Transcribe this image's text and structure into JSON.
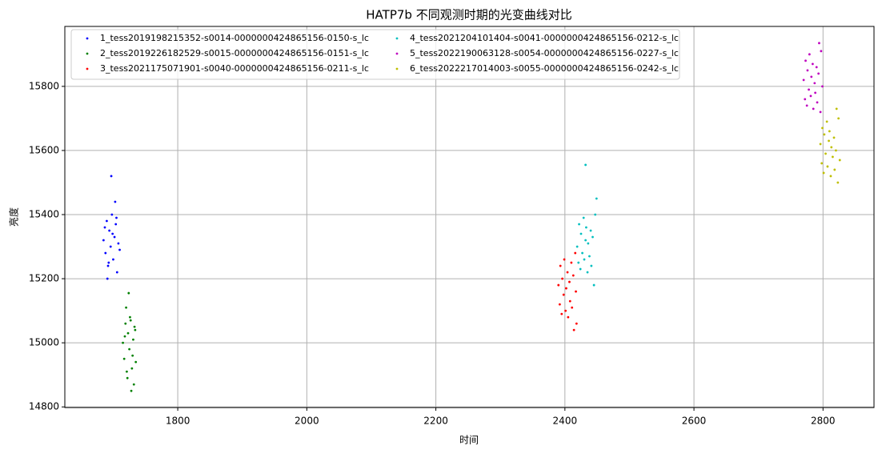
{
  "chart_data": {
    "type": "scatter",
    "title": "HATP7b 不同观测时期的光变曲线对比",
    "x_label": "时间",
    "y_label": "亮度",
    "xlim": [
      1625,
      2879
    ],
    "ylim": [
      14798,
      15987
    ],
    "xticks": [
      1800,
      2000,
      2200,
      2400,
      2600,
      2800
    ],
    "yticks": [
      14800,
      15000,
      15200,
      15400,
      15600,
      15800
    ],
    "grid": true,
    "legend": "upper left",
    "series": [
      {
        "name": "1_tess2019198215352-s0014-0000000424865156-0150-s_lc",
        "color": "#0000ff",
        "x": [
          1685,
          1688,
          1690,
          1692,
          1694,
          1696,
          1698,
          1700,
          1702,
          1704,
          1706,
          1708,
          1710,
          1687,
          1693,
          1699,
          1705,
          1697,
          1691,
          1703
        ],
        "y": [
          15320,
          15280,
          15380,
          15240,
          15350,
          15300,
          15400,
          15260,
          15330,
          15370,
          15220,
          15310,
          15290,
          15360,
          15250,
          15340,
          15390,
          15520,
          15200,
          15440
        ]
      },
      {
        "name": "2_tess2019226182529-s0015-0000000424865156-0151-s_lc",
        "color": "#008000",
        "x": [
          1715,
          1717,
          1719,
          1721,
          1723,
          1725,
          1727,
          1729,
          1731,
          1733,
          1735,
          1718,
          1722,
          1726,
          1730,
          1734,
          1720,
          1728,
          1724,
          1732
        ],
        "y": [
          15000,
          14950,
          15060,
          14910,
          15030,
          14980,
          15070,
          14920,
          15010,
          15050,
          14940,
          15020,
          14890,
          15080,
          14960,
          15040,
          15110,
          14850,
          15155,
          14870
        ]
      },
      {
        "name": "3_tess2021175071901-s0040-0000000424865156-0211-s_lc",
        "color": "#ff0000",
        "x": [
          2390,
          2392,
          2393,
          2395,
          2396,
          2398,
          2399,
          2401,
          2402,
          2404,
          2405,
          2407,
          2408,
          2410,
          2411,
          2413,
          2414,
          2416,
          2417,
          2418
        ],
        "y": [
          15180,
          15120,
          15240,
          15090,
          15200,
          15150,
          15260,
          15100,
          15170,
          15220,
          15080,
          15190,
          15130,
          15250,
          15110,
          15210,
          15040,
          15280,
          15160,
          15060
        ]
      },
      {
        "name": "4_tess2021204101404-s0041-0000000424865156-0212-s_lc",
        "color": "#00bfbf",
        "x": [
          2419,
          2421,
          2422,
          2424,
          2425,
          2427,
          2429,
          2430,
          2432,
          2433,
          2435,
          2436,
          2438,
          2440,
          2441,
          2443,
          2432,
          2445,
          2447,
          2449
        ],
        "y": [
          15300,
          15250,
          15370,
          15230,
          15340,
          15280,
          15390,
          15260,
          15320,
          15360,
          15220,
          15310,
          15270,
          15350,
          15240,
          15330,
          15555,
          15180,
          15400,
          15450
        ]
      },
      {
        "name": "5_tess2022190063128-s0054-0000000424865156-0227-s_lc",
        "color": "#bf00bf",
        "x": [
          2770,
          2772,
          2773,
          2775,
          2776,
          2778,
          2779,
          2781,
          2782,
          2784,
          2785,
          2787,
          2788,
          2790,
          2791,
          2793,
          2794,
          2796,
          2797,
          2799
        ],
        "y": [
          15820,
          15760,
          15880,
          15740,
          15850,
          15790,
          15900,
          15770,
          15830,
          15870,
          15730,
          15810,
          15780,
          15860,
          15750,
          15840,
          15935,
          15720,
          15910,
          15800
        ]
      },
      {
        "name": "6_tess2022217014003-s0055-0000000424865156-0242-s_lc",
        "color": "#bfbf00",
        "x": [
          2796,
          2798,
          2799,
          2801,
          2802,
          2804,
          2806,
          2807,
          2809,
          2810,
          2812,
          2813,
          2815,
          2817,
          2818,
          2820,
          2821,
          2823,
          2824,
          2826
        ],
        "y": [
          15620,
          15560,
          15670,
          15530,
          15650,
          15590,
          15690,
          15550,
          15630,
          15660,
          15520,
          15610,
          15580,
          15640,
          15540,
          15600,
          15730,
          15500,
          15700,
          15570
        ]
      }
    ]
  }
}
